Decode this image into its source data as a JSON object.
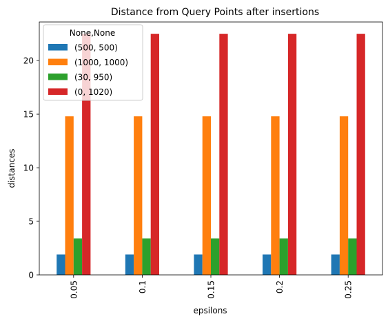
{
  "chart_data": {
    "type": "bar",
    "title": "Distance from Query Points after insertions",
    "xlabel": "epsilons",
    "ylabel": "distances",
    "categories": [
      "0.05",
      "0.1",
      "0.15",
      "0.2",
      "0.25"
    ],
    "ylim": [
      0,
      23.6
    ],
    "yticks": [
      0,
      5,
      10,
      15,
      20
    ],
    "legend_title": "None,None",
    "legend_position": "top-left",
    "grid": false,
    "series": [
      {
        "name": "(500, 500)",
        "color": "#1f77b4",
        "values": [
          1.9,
          1.9,
          1.9,
          1.9,
          1.9
        ]
      },
      {
        "name": "(1000, 1000)",
        "color": "#ff7f0e",
        "values": [
          14.8,
          14.8,
          14.8,
          14.8,
          14.8
        ]
      },
      {
        "name": "(30, 950)",
        "color": "#2ca02c",
        "values": [
          3.4,
          3.4,
          3.4,
          3.4,
          3.4
        ]
      },
      {
        "name": "(0, 1020)",
        "color": "#d62728",
        "values": [
          22.5,
          22.5,
          22.5,
          22.5,
          22.5
        ]
      }
    ]
  }
}
